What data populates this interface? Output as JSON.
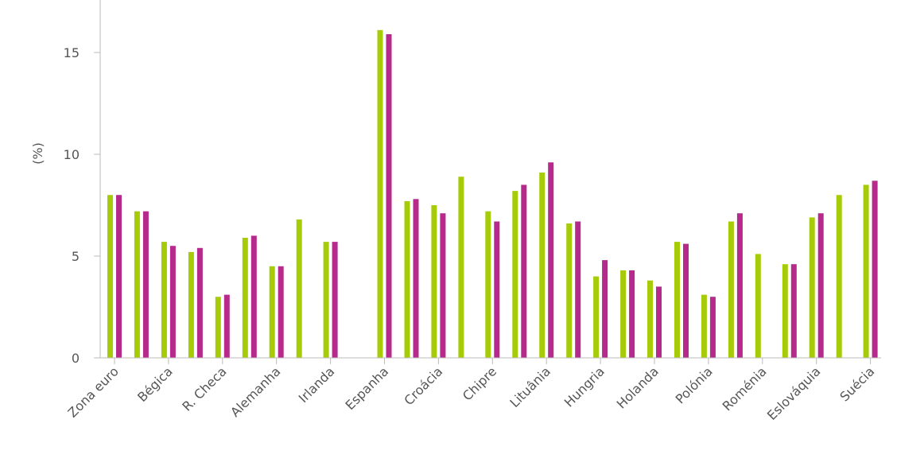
{
  "chart_data": {
    "type": "bar",
    "ylabel": "(%)",
    "ylim": [
      0,
      17.3
    ],
    "yticks": [
      0,
      5,
      10,
      15
    ],
    "grid": false,
    "colors": [
      "#a6cc09",
      "#b52a8a"
    ],
    "x_slots": [
      "Zona euro",
      "",
      "Bégica",
      "",
      "R. Checa",
      "",
      "Alemanha",
      "",
      "Irlanda",
      "",
      "Espanha",
      "",
      "Croácia",
      "",
      "Chipre",
      "",
      "Lituânia",
      "",
      "Hungria",
      "",
      "Holanda",
      "",
      "Polónia",
      "",
      "Roménia",
      "",
      "Eslováquia",
      "",
      "Suécia"
    ],
    "series": [
      {
        "values": [
          8.0,
          7.2,
          5.7,
          5.2,
          3.0,
          5.9,
          4.5,
          6.8,
          5.7,
          null,
          16.1,
          7.7,
          7.5,
          8.9,
          7.2,
          8.2,
          9.1,
          6.6,
          4.0,
          4.3,
          3.8,
          5.7,
          3.1,
          6.7,
          5.1,
          4.6,
          6.9,
          8.0,
          8.5
        ]
      },
      {
        "values": [
          8.0,
          7.2,
          5.5,
          5.4,
          3.1,
          6.0,
          4.5,
          null,
          5.7,
          null,
          15.9,
          7.8,
          7.1,
          null,
          6.7,
          8.5,
          9.6,
          6.7,
          4.8,
          4.3,
          3.5,
          5.6,
          3.0,
          7.1,
          null,
          4.6,
          7.1,
          null,
          8.7
        ]
      }
    ]
  }
}
